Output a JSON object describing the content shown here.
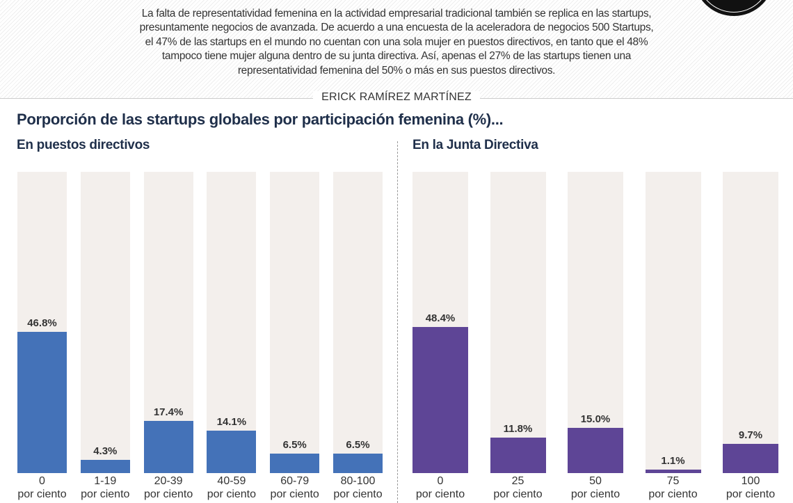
{
  "intro": "La falta de representatividad femenina en la actividad empresarial tradicional también se replica en las startups, presuntamente negocios de avanzada. De acuerdo a una encuesta de la aceleradora de negocios 500 Startups, el 47% de las startups en el mundo no cuentan con una sola mujer en puestos directivos, en tanto que el 48% tampoco tiene mujer alguna dentro de su junta directiva. Así, apenas el 27% de las startups tienen una representatividad femenina del 50% o más en sus puestos directivos.",
  "author": "ERICK RAMÍREZ MARTÍNEZ",
  "heading": "Porporción de las startups globales por participación femenina (%)...",
  "chart_data": [
    {
      "type": "bar",
      "title": "En puestos directivos",
      "categories": [
        "0\npor ciento",
        "1-19\npor ciento",
        "20-39\npor ciento",
        "40-59\npor ciento",
        "60-79\npor ciento",
        "80-100\npor ciento"
      ],
      "values": [
        46.8,
        4.3,
        17.4,
        14.1,
        6.5,
        6.5
      ],
      "value_labels": [
        "46.8%",
        "4.3%",
        "17.4%",
        "14.1%",
        "6.5%",
        "6.5%"
      ],
      "color": "#4472b8",
      "ylim": [
        0,
        100
      ]
    },
    {
      "type": "bar",
      "title": "En la Junta Directiva",
      "categories": [
        "0\npor ciento",
        "25\npor ciento",
        "50\npor ciento",
        "75\npor ciento",
        "100\npor ciento"
      ],
      "values": [
        48.4,
        11.8,
        15.0,
        1.1,
        9.7
      ],
      "value_labels": [
        "48.4%",
        "11.8%",
        "15.0%",
        "1.1%",
        "9.7%"
      ],
      "color": "#5e4596",
      "ylim": [
        0,
        100
      ]
    }
  ]
}
